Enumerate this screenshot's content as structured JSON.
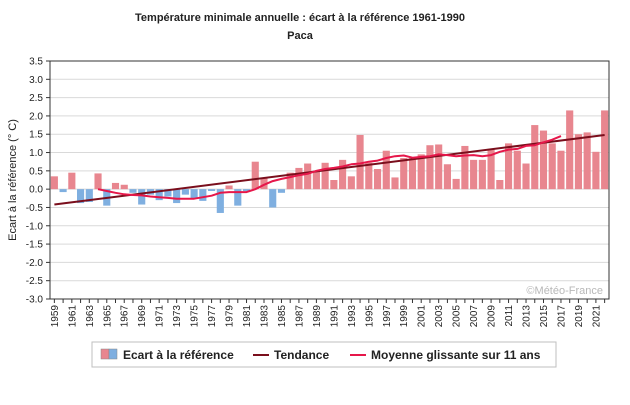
{
  "chart_data": {
    "type": "bar",
    "title": "Température minimale annuelle : écart à la référence 1961-1990",
    "subtitle": "Paca",
    "ylabel": "Ecart à la référence (° C)",
    "xlabel": "",
    "ylim": [
      -3.0,
      3.5
    ],
    "yticks": [
      "3.5",
      "3.0",
      "2.5",
      "2.0",
      "1.5",
      "1.0",
      "0.5",
      "0.0",
      "-0.5",
      "-1.0",
      "-1.5",
      "-2.0",
      "-2.5",
      "-3.0"
    ],
    "grid": true,
    "credit": "©Météo-France",
    "legend": {
      "placement": "bottom",
      "bars": "Ecart à la référence",
      "trend": "Tendance",
      "moving_average": "Moyenne glissante sur 11 ans"
    },
    "colors": {
      "positive": "#e8868f",
      "negative": "#7fafe0",
      "trend": "#7a0e1c",
      "moving_average": "#e6174a"
    },
    "years": [
      1959,
      1960,
      1961,
      1962,
      1963,
      1964,
      1965,
      1966,
      1967,
      1968,
      1969,
      1970,
      1971,
      1972,
      1973,
      1974,
      1975,
      1976,
      1977,
      1978,
      1979,
      1980,
      1981,
      1982,
      1983,
      1984,
      1985,
      1986,
      1987,
      1988,
      1989,
      1990,
      1991,
      1992,
      1993,
      1994,
      1995,
      1996,
      1997,
      1998,
      1999,
      2000,
      2001,
      2002,
      2003,
      2004,
      2005,
      2006,
      2007,
      2008,
      2009,
      2010,
      2011,
      2012,
      2013,
      2014,
      2015,
      2016,
      2017,
      2018,
      2019,
      2020,
      2021,
      2022
    ],
    "x_tick_labels": [
      "1959",
      "1961",
      "1963",
      "1965",
      "1967",
      "1969",
      "1971",
      "1973",
      "1975",
      "1977",
      "1979",
      "1981",
      "1983",
      "1985",
      "1987",
      "1989",
      "1991",
      "1993",
      "1995",
      "1997",
      "1999",
      "2001",
      "2003",
      "2005",
      "2007",
      "2009",
      "2011",
      "2013",
      "2015",
      "2017",
      "2019",
      "2021"
    ],
    "values": [
      0.35,
      -0.08,
      0.45,
      -0.38,
      -0.35,
      0.43,
      -0.45,
      0.17,
      0.12,
      -0.1,
      -0.42,
      -0.15,
      -0.3,
      -0.2,
      -0.38,
      -0.15,
      -0.25,
      -0.32,
      -0.05,
      -0.65,
      0.1,
      -0.45,
      -0.05,
      0.75,
      0.3,
      -0.5,
      -0.1,
      0.45,
      0.58,
      0.7,
      0.48,
      0.72,
      0.25,
      0.8,
      0.35,
      1.48,
      0.72,
      0.55,
      1.05,
      0.32,
      0.85,
      0.85,
      0.95,
      1.2,
      1.22,
      0.68,
      0.28,
      1.18,
      0.8,
      0.8,
      1.1,
      0.25,
      1.25,
      1.05,
      0.7,
      1.75,
      1.6,
      1.25,
      1.05,
      2.15,
      1.5,
      1.55,
      1.02,
      2.15
    ],
    "trend": {
      "x": [
        1959,
        2022
      ],
      "y": [
        -0.42,
        1.48
      ]
    },
    "moving_average": {
      "x": [
        1964,
        1965,
        1966,
        1967,
        1968,
        1969,
        1970,
        1971,
        1972,
        1973,
        1974,
        1975,
        1976,
        1977,
        1978,
        1979,
        1980,
        1981,
        1982,
        1983,
        1984,
        1985,
        1986,
        1987,
        1988,
        1989,
        1990,
        1991,
        1992,
        1993,
        1994,
        1995,
        1996,
        1997,
        1998,
        1999,
        2000,
        2001,
        2002,
        2003,
        2004,
        2005,
        2006,
        2007,
        2008,
        2009,
        2010,
        2011,
        2012,
        2013,
        2014,
        2015,
        2016,
        2017
      ],
      "y": [
        0.0,
        -0.05,
        -0.1,
        -0.14,
        -0.16,
        -0.17,
        -0.2,
        -0.22,
        -0.24,
        -0.26,
        -0.26,
        -0.26,
        -0.22,
        -0.18,
        -0.1,
        -0.08,
        -0.08,
        -0.08,
        0.0,
        0.12,
        0.22,
        0.28,
        0.33,
        0.38,
        0.42,
        0.5,
        0.55,
        0.58,
        0.62,
        0.68,
        0.7,
        0.75,
        0.78,
        0.85,
        0.9,
        0.92,
        0.86,
        0.88,
        0.9,
        0.95,
        0.93,
        0.9,
        0.92,
        0.93,
        0.9,
        0.93,
        1.02,
        1.08,
        1.1,
        1.18,
        1.2,
        1.28,
        1.35,
        1.45
      ]
    }
  }
}
